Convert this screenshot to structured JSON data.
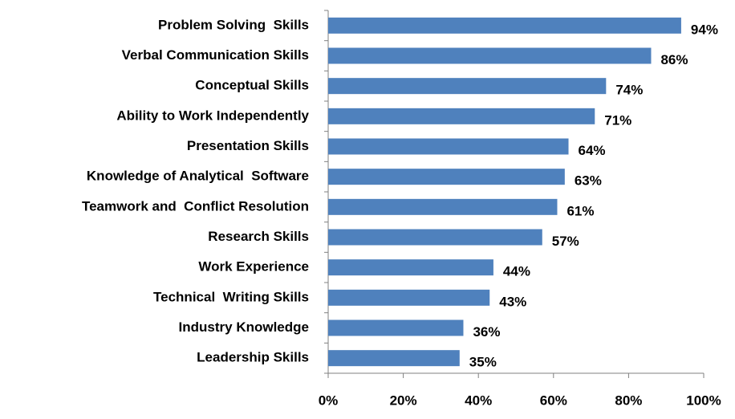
{
  "chart_data": {
    "type": "bar",
    "orientation": "horizontal",
    "categories": [
      "Problem Solving  Skills",
      "Verbal Communication Skills",
      "Conceptual Skills",
      "Ability to Work Independently",
      "Presentation Skills",
      "Knowledge of Analytical  Software",
      "Teamwork and  Conflict Resolution",
      "Research Skills",
      "Work Experience",
      "Technical  Writing Skills",
      "Industry Knowledge",
      "Leadership Skills"
    ],
    "values": [
      94,
      86,
      74,
      71,
      64,
      63,
      61,
      57,
      44,
      43,
      36,
      35
    ],
    "value_labels": [
      "94%",
      "86%",
      "74%",
      "71%",
      "64%",
      "63%",
      "61%",
      "57%",
      "44%",
      "43%",
      "36%",
      "35%"
    ],
    "color": "#4f81bd",
    "xlim": [
      0,
      100
    ],
    "xticks": [
      {
        "value": 0,
        "label": "0%"
      },
      {
        "value": 20,
        "label": "20%"
      },
      {
        "value": 40,
        "label": "40%"
      },
      {
        "value": 60,
        "label": "60%"
      },
      {
        "value": 80,
        "label": "80%"
      },
      {
        "value": 100,
        "label": "100%"
      }
    ],
    "grid": false
  }
}
